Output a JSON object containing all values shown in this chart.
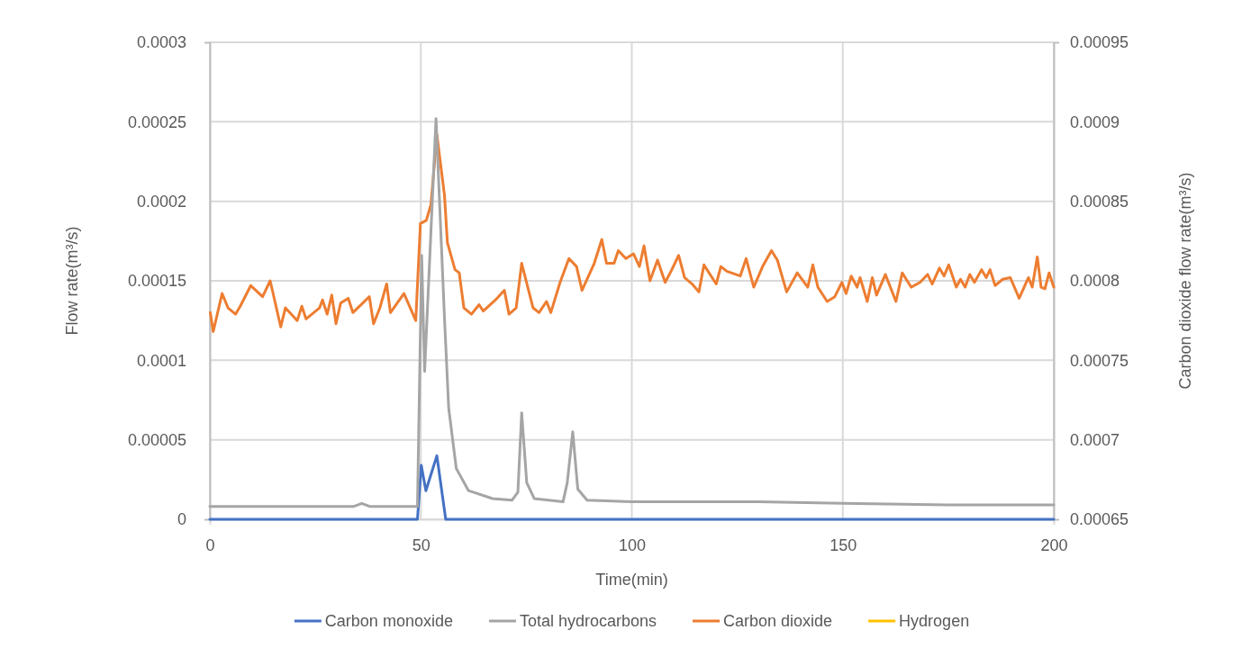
{
  "chart_data": {
    "type": "line",
    "xlabel": "Time(min)",
    "ylabel": "Flow rate(m³/s)",
    "y2label": "Carbon dioxide flow rate(m³/s)",
    "xlim": [
      0,
      200
    ],
    "xticks": [
      0,
      50,
      100,
      150,
      200
    ],
    "ylim": [
      0,
      0.0003
    ],
    "yticks": [
      0,
      {
        "value": 5e-05,
        "label": "0.00005"
      },
      0.0001,
      0.00015,
      0.0002,
      0.00025,
      0.0003
    ],
    "y2lim": [
      0.00065,
      0.00095
    ],
    "y2ticks": [
      0.00065,
      0.0007,
      0.00075,
      0.0008,
      0.00085,
      0.0009,
      0.00095
    ],
    "grid": true,
    "legend": "bottom",
    "marker": "none",
    "line_style": "solid",
    "series": [
      {
        "name": "Carbon monoxide",
        "color": "#4472c4",
        "x": [
          0,
          49.2,
          50.1,
          51.2,
          53.8,
          55.9,
          200
        ],
        "values": [
          0,
          0,
          3.4e-05,
          1.8e-05,
          4e-05,
          0,
          0
        ]
      },
      {
        "name": "Total hydrocarbons",
        "color": "#a5a5a5",
        "x": [
          0,
          20,
          34,
          36,
          38,
          49.2,
          50.2,
          50.9,
          53.6,
          55.6,
          56.6,
          58.4,
          61.3,
          67,
          71.6,
          73,
          73.9,
          75.1,
          76.9,
          83.7,
          84.7,
          86,
          87.2,
          89.4,
          100,
          130,
          150,
          175,
          200
        ],
        "values": [
          8e-06,
          8e-06,
          8e-06,
          1e-05,
          8e-06,
          8e-06,
          0.000166,
          9.3e-05,
          0.000252,
          0.000127,
          7e-05,
          3.2e-05,
          1.8e-05,
          1.3e-05,
          1.2e-05,
          1.7e-05,
          6.7e-05,
          2.3e-05,
          1.3e-05,
          1.1e-05,
          2.3e-05,
          5.5e-05,
          1.9e-05,
          1.2e-05,
          1.1e-05,
          1.1e-05,
          1e-05,
          9e-06,
          9e-06
        ]
      },
      {
        "name": "Carbon dioxide",
        "color": "#ed7d31",
        "axis": "y2",
        "x": [
          0.1,
          0.8,
          2.9,
          4.3,
          6.1,
          7.2,
          9.7,
          12.5,
          14.3,
          16.8,
          17.9,
          20.7,
          21.8,
          22.8,
          26,
          26.7,
          27.8,
          28.9,
          29.9,
          31,
          32.8,
          33.9,
          37.8,
          38.8,
          40.3,
          41.9,
          42.8,
          46,
          48.8,
          49.9,
          51.3,
          52.4,
          53.8,
          55.6,
          56.3,
          58.1,
          59.1,
          60.2,
          62,
          63.8,
          64.8,
          67.7,
          69.8,
          70.9,
          72.6,
          73.9,
          76.6,
          78,
          79.8,
          80.8,
          83,
          85.1,
          86.9,
          88.2,
          91.1,
          92.9,
          94,
          95.8,
          96.8,
          98.6,
          100.4,
          101.8,
          102.9,
          104.3,
          106.1,
          107.9,
          109.3,
          111.1,
          112.5,
          114.3,
          115.9,
          117.1,
          120,
          121.1,
          122.5,
          125.7,
          127.1,
          128.9,
          131,
          133.1,
          134.5,
          136.7,
          139.2,
          141.7,
          142.9,
          144.1,
          146.3,
          148.1,
          149.8,
          150.8,
          152,
          153.4,
          154.1,
          155.8,
          157,
          158,
          160.1,
          162.6,
          164.1,
          166.2,
          168.3,
          170.1,
          171.2,
          172.9,
          174,
          175.1,
          176.9,
          177.9,
          179,
          180.1,
          181.2,
          182.9,
          184,
          184.9,
          186.1,
          187.9,
          189.7,
          191.8,
          194,
          194.9,
          196.1,
          197,
          197.9,
          198.9,
          200
        ],
        "values": [
          0.00078,
          0.000768,
          0.000792,
          0.000783,
          0.000779,
          0.000784,
          0.000797,
          0.00079,
          0.0008,
          0.000771,
          0.000783,
          0.000775,
          0.000784,
          0.000776,
          0.000783,
          0.000788,
          0.000779,
          0.000791,
          0.000773,
          0.000786,
          0.000789,
          0.00078,
          0.00079,
          0.000773,
          0.000783,
          0.000798,
          0.00078,
          0.000792,
          0.000775,
          0.000836,
          0.000838,
          0.000848,
          0.000892,
          0.000854,
          0.000824,
          0.000807,
          0.000805,
          0.000783,
          0.000779,
          0.000785,
          0.000781,
          0.000788,
          0.000794,
          0.000779,
          0.000783,
          0.000811,
          0.000783,
          0.00078,
          0.000787,
          0.00078,
          0.000799,
          0.000814,
          0.000809,
          0.000794,
          0.000811,
          0.000826,
          0.000811,
          0.000811,
          0.000819,
          0.000814,
          0.000817,
          0.000809,
          0.000822,
          0.0008,
          0.000813,
          0.000799,
          0.000806,
          0.000816,
          0.000802,
          0.000798,
          0.000793,
          0.00081,
          0.000798,
          0.000809,
          0.000806,
          0.000803,
          0.000814,
          0.000796,
          0.000809,
          0.000819,
          0.000813,
          0.000793,
          0.000805,
          0.000796,
          0.00081,
          0.000796,
          0.000787,
          0.00079,
          0.000799,
          0.000792,
          0.000803,
          0.000796,
          0.000802,
          0.000787,
          0.000802,
          0.000791,
          0.000804,
          0.000787,
          0.000805,
          0.000796,
          0.000799,
          0.000804,
          0.000798,
          0.000808,
          0.000803,
          0.00081,
          0.000796,
          0.000801,
          0.000796,
          0.000804,
          0.000799,
          0.000807,
          0.000802,
          0.000807,
          0.000797,
          0.000801,
          0.000802,
          0.000789,
          0.000802,
          0.000796,
          0.000815,
          0.000796,
          0.000795,
          0.000805,
          0.000796
        ]
      },
      {
        "name": "Hydrogen",
        "color": "#ffc000"
      }
    ]
  }
}
